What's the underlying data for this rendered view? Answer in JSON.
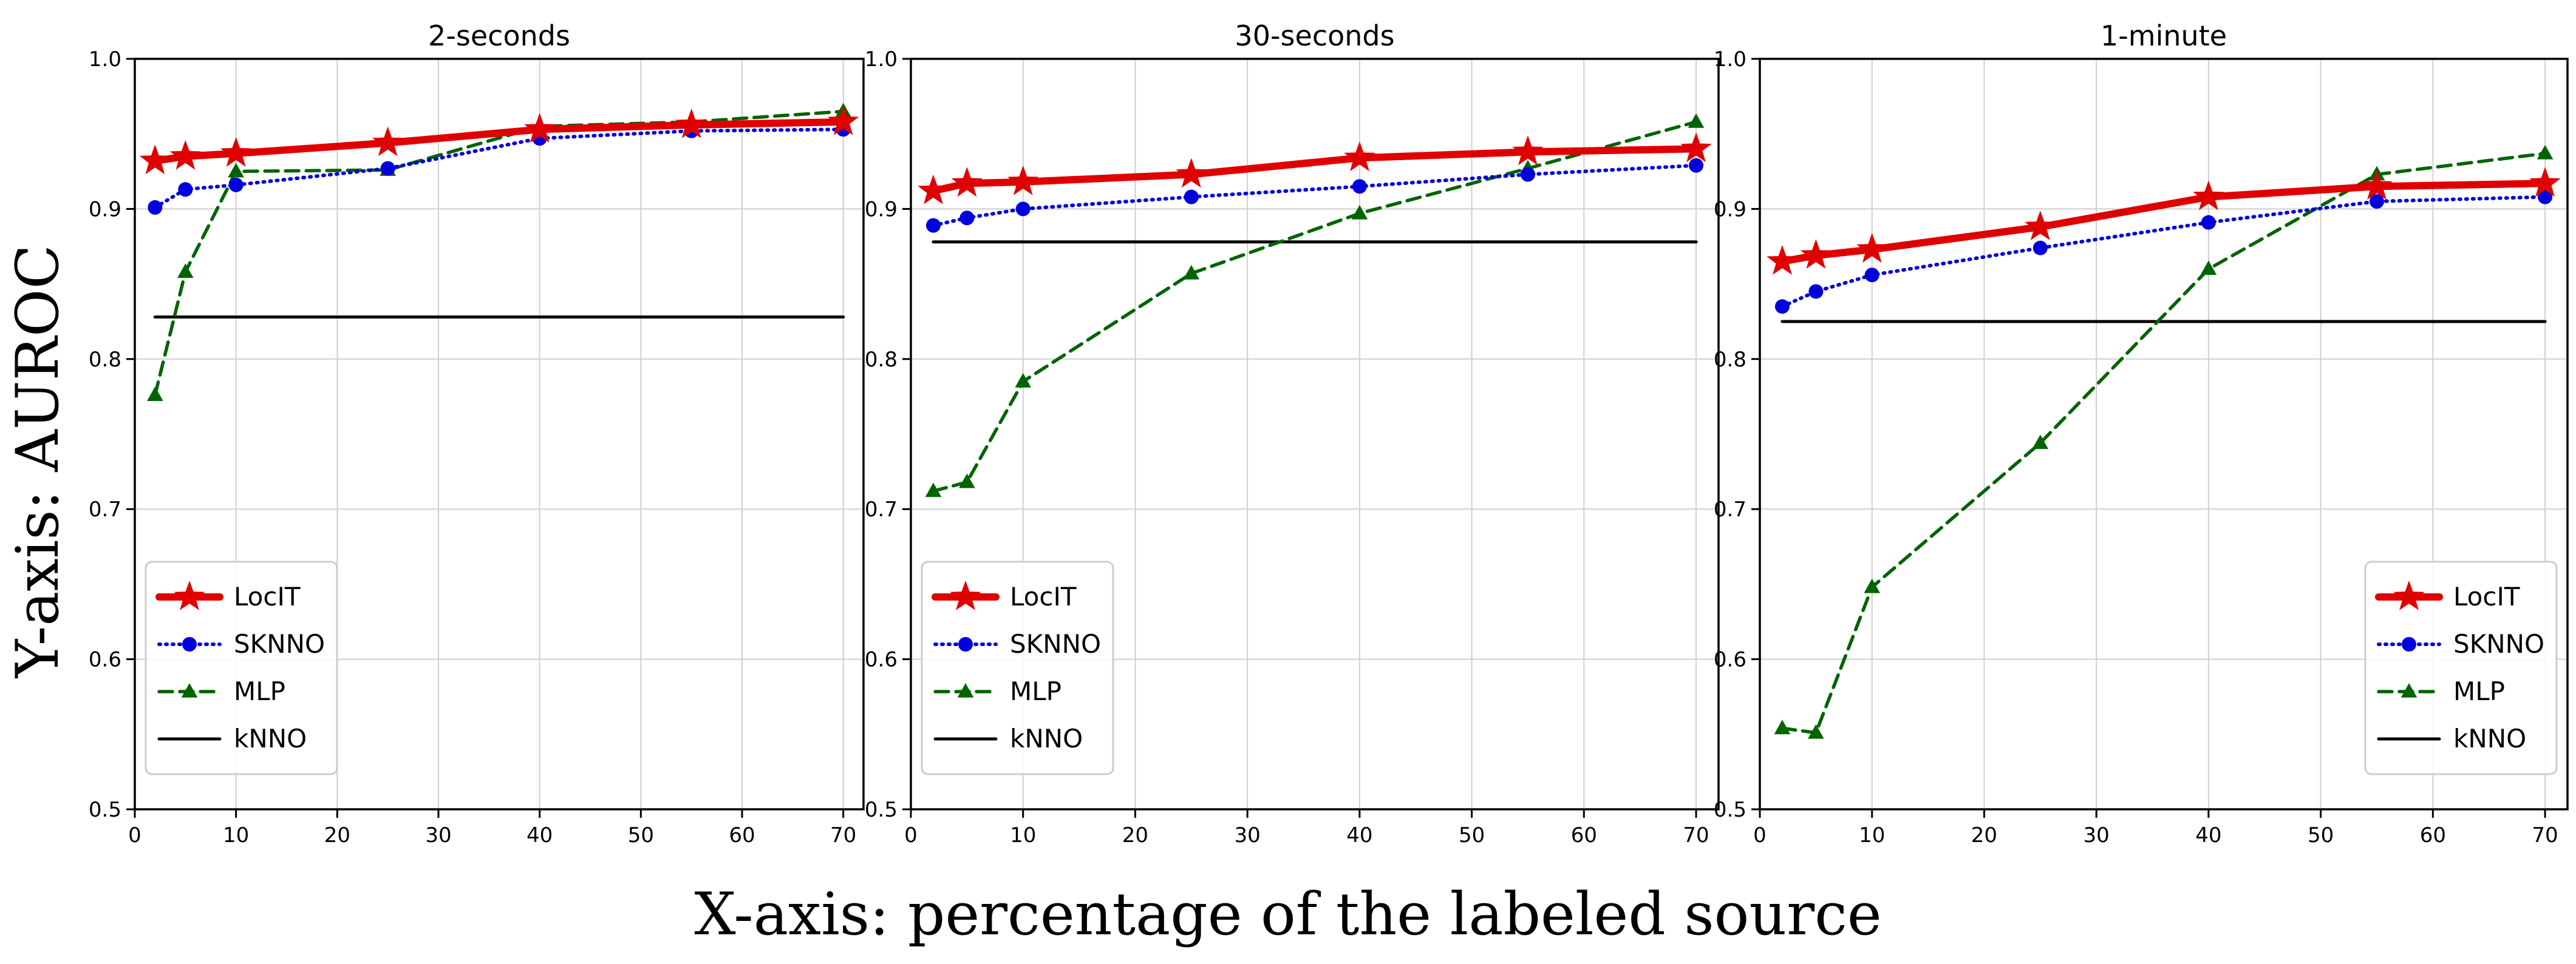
{
  "figure": {
    "ylabel": "Y-axis: AUROC",
    "xlabel": "X-axis: percentage of the labeled source"
  },
  "chart_data": [
    {
      "type": "line",
      "title": "2-seconds",
      "xlim": [
        0,
        72
      ],
      "ylim": [
        0.5,
        1.0
      ],
      "xticks": [
        0,
        10,
        20,
        30,
        40,
        50,
        60,
        70
      ],
      "yticks": [
        0.5,
        0.6,
        0.7,
        0.8,
        0.9,
        1.0
      ],
      "grid": true,
      "legend_position": "lower-left",
      "series": [
        {
          "name": "LocIT",
          "x": [
            2,
            5,
            10,
            25,
            40,
            55,
            70
          ],
          "values": [
            0.932,
            0.935,
            0.937,
            0.944,
            0.953,
            0.956,
            0.958
          ]
        },
        {
          "name": "SKNNO",
          "x": [
            2,
            5,
            10,
            25,
            40,
            55,
            70
          ],
          "values": [
            0.901,
            0.913,
            0.916,
            0.927,
            0.947,
            0.952,
            0.953
          ]
        },
        {
          "name": "MLP",
          "x": [
            2,
            5,
            10,
            25,
            40,
            55,
            70
          ],
          "values": [
            0.776,
            0.858,
            0.925,
            0.926,
            0.955,
            0.958,
            0.965
          ]
        },
        {
          "name": "kNNO",
          "x": [
            2,
            70
          ],
          "values": [
            0.828,
            0.828
          ]
        }
      ]
    },
    {
      "type": "line",
      "title": "30-seconds",
      "xlim": [
        0,
        72
      ],
      "ylim": [
        0.5,
        1.0
      ],
      "xticks": [
        0,
        10,
        20,
        30,
        40,
        50,
        60,
        70
      ],
      "yticks": [
        0.5,
        0.6,
        0.7,
        0.8,
        0.9,
        1.0
      ],
      "grid": true,
      "legend_position": "lower-left",
      "series": [
        {
          "name": "LocIT",
          "x": [
            2,
            5,
            10,
            25,
            40,
            55,
            70
          ],
          "values": [
            0.912,
            0.917,
            0.918,
            0.923,
            0.934,
            0.938,
            0.94
          ]
        },
        {
          "name": "SKNNO",
          "x": [
            2,
            5,
            10,
            25,
            40,
            55,
            70
          ],
          "values": [
            0.889,
            0.894,
            0.9,
            0.908,
            0.915,
            0.923,
            0.929
          ]
        },
        {
          "name": "MLP",
          "x": [
            2,
            5,
            10,
            25,
            40,
            55,
            70
          ],
          "values": [
            0.712,
            0.718,
            0.785,
            0.857,
            0.897,
            0.927,
            0.958
          ]
        },
        {
          "name": "kNNO",
          "x": [
            2,
            70
          ],
          "values": [
            0.878,
            0.878
          ]
        }
      ]
    },
    {
      "type": "line",
      "title": "1-minute",
      "xlim": [
        0,
        72
      ],
      "ylim": [
        0.5,
        1.0
      ],
      "xticks": [
        0,
        10,
        20,
        30,
        40,
        50,
        60,
        70
      ],
      "yticks": [
        0.5,
        0.6,
        0.7,
        0.8,
        0.9,
        1.0
      ],
      "grid": true,
      "legend_position": "lower-right",
      "series": [
        {
          "name": "LocIT",
          "x": [
            2,
            5,
            10,
            25,
            40,
            55,
            70
          ],
          "values": [
            0.865,
            0.869,
            0.873,
            0.888,
            0.908,
            0.915,
            0.917
          ]
        },
        {
          "name": "SKNNO",
          "x": [
            2,
            5,
            10,
            25,
            40,
            55,
            70
          ],
          "values": [
            0.835,
            0.845,
            0.856,
            0.874,
            0.891,
            0.905,
            0.908
          ]
        },
        {
          "name": "MLP",
          "x": [
            2,
            5,
            10,
            25,
            40,
            55,
            70
          ],
          "values": [
            0.554,
            0.551,
            0.648,
            0.744,
            0.86,
            0.923,
            0.937
          ]
        },
        {
          "name": "kNNO",
          "x": [
            2,
            70
          ],
          "values": [
            0.825,
            0.825
          ]
        }
      ]
    }
  ],
  "styles": {
    "LocIT": {
      "color": "#e00000",
      "marker": "star"
    },
    "SKNNO": {
      "color": "#0000dd",
      "marker": "circle"
    },
    "MLP": {
      "color": "#006400",
      "marker": "triangle"
    },
    "kNNO": {
      "color": "#000000",
      "marker": "none"
    },
    "grid": "#cfcfcf",
    "axis": "#000000"
  }
}
